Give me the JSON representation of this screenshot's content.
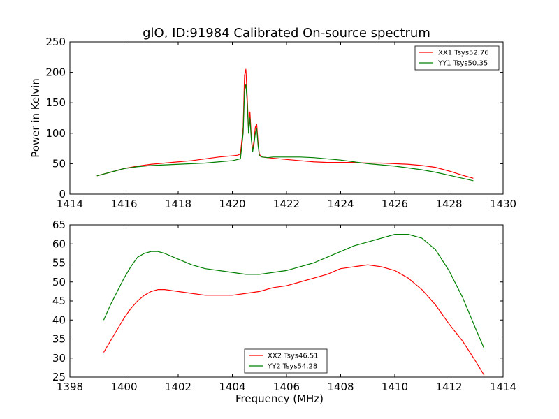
{
  "figure": {
    "title": "glO, ID:91984 Calibrated On-source spectrum"
  },
  "chart_data": [
    {
      "type": "line",
      "title": "glO, ID:91984 Calibrated On-source spectrum",
      "xlabel": "",
      "ylabel": "Power in Kelvin",
      "xlim": [
        1414,
        1430
      ],
      "ylim": [
        0,
        250
      ],
      "xticks": [
        1414,
        1416,
        1418,
        1420,
        1422,
        1424,
        1426,
        1428,
        1430
      ],
      "yticks": [
        0,
        50,
        100,
        150,
        200,
        250
      ],
      "legend_position": "upper-right",
      "grid": false,
      "series": [
        {
          "name": "XX1 Tsys52.76",
          "color": "#ff0000",
          "x": [
            1415.0,
            1415.5,
            1416.0,
            1416.5,
            1417.0,
            1417.5,
            1418.0,
            1418.5,
            1419.0,
            1419.5,
            1420.0,
            1420.2,
            1420.3,
            1420.4,
            1420.45,
            1420.5,
            1420.55,
            1420.6,
            1420.65,
            1420.7,
            1420.75,
            1420.8,
            1420.85,
            1420.9,
            1420.95,
            1421.0,
            1421.1,
            1421.3,
            1421.5,
            1422.0,
            1422.5,
            1423.0,
            1423.5,
            1424.0,
            1424.5,
            1425.0,
            1425.5,
            1426.0,
            1426.5,
            1427.0,
            1427.5,
            1428.0,
            1428.5,
            1428.9
          ],
          "y": [
            30,
            36,
            42,
            46,
            49,
            51,
            53,
            55,
            58,
            61,
            63,
            64,
            66,
            110,
            195,
            205,
            160,
            105,
            135,
            95,
            72,
            88,
            110,
            115,
            85,
            65,
            61,
            60,
            59,
            57,
            55,
            53,
            52,
            52,
            52,
            51,
            51,
            50,
            49,
            47,
            44,
            38,
            31,
            26
          ]
        },
        {
          "name": "YY1 Tsys50.35",
          "color": "#008000",
          "x": [
            1415.0,
            1415.5,
            1416.0,
            1416.5,
            1417.0,
            1417.5,
            1418.0,
            1418.5,
            1419.0,
            1419.5,
            1420.0,
            1420.2,
            1420.3,
            1420.4,
            1420.45,
            1420.5,
            1420.55,
            1420.6,
            1420.65,
            1420.7,
            1420.75,
            1420.8,
            1420.85,
            1420.9,
            1420.95,
            1421.0,
            1421.1,
            1421.3,
            1421.5,
            1422.0,
            1422.5,
            1423.0,
            1423.5,
            1424.0,
            1424.5,
            1425.0,
            1425.5,
            1426.0,
            1426.5,
            1427.0,
            1427.5,
            1428.0,
            1428.5,
            1428.9
          ],
          "y": [
            30,
            36,
            42,
            45,
            47,
            48,
            49,
            50,
            51,
            53,
            55,
            57,
            58,
            100,
            170,
            180,
            150,
            100,
            125,
            90,
            70,
            82,
            100,
            108,
            80,
            63,
            61,
            60,
            61,
            61,
            61,
            60,
            58,
            56,
            53,
            50,
            48,
            46,
            43,
            40,
            36,
            31,
            26,
            22
          ]
        }
      ]
    },
    {
      "type": "line",
      "title": "",
      "xlabel": "Frequency (MHz)",
      "ylabel": "",
      "xlim": [
        1398,
        1414
      ],
      "ylim": [
        25,
        65
      ],
      "xticks": [
        1398,
        1400,
        1402,
        1404,
        1406,
        1408,
        1410,
        1412,
        1414
      ],
      "yticks": [
        25,
        30,
        35,
        40,
        45,
        50,
        55,
        60,
        65
      ],
      "legend_position": "lower-center",
      "grid": false,
      "series": [
        {
          "name": "XX2 Tsys46.51",
          "color": "#ff0000",
          "x": [
            1399.25,
            1399.5,
            1399.75,
            1400.0,
            1400.25,
            1400.5,
            1400.75,
            1401.0,
            1401.25,
            1401.5,
            1402.0,
            1402.5,
            1403.0,
            1403.5,
            1404.0,
            1404.5,
            1405.0,
            1405.5,
            1406.0,
            1406.5,
            1407.0,
            1407.5,
            1408.0,
            1408.5,
            1409.0,
            1409.5,
            1410.0,
            1410.5,
            1411.0,
            1411.5,
            1412.0,
            1412.5,
            1413.0,
            1413.3
          ],
          "y": [
            31.5,
            34.5,
            37.5,
            40.5,
            43.0,
            45.0,
            46.5,
            47.5,
            48.0,
            48.0,
            47.5,
            47.0,
            46.5,
            46.5,
            46.5,
            47.0,
            47.5,
            48.5,
            49.0,
            50.0,
            51.0,
            52.0,
            53.5,
            54.0,
            54.5,
            54.0,
            53.0,
            51.0,
            48.0,
            44.0,
            39.0,
            34.5,
            29.0,
            25.5
          ]
        },
        {
          "name": "YY2 Tsys54.28",
          "color": "#008000",
          "x": [
            1399.25,
            1399.5,
            1399.75,
            1400.0,
            1400.25,
            1400.5,
            1400.75,
            1401.0,
            1401.25,
            1401.5,
            1402.0,
            1402.5,
            1403.0,
            1403.5,
            1404.0,
            1404.5,
            1405.0,
            1405.5,
            1406.0,
            1406.5,
            1407.0,
            1407.5,
            1408.0,
            1408.5,
            1409.0,
            1409.5,
            1410.0,
            1410.5,
            1411.0,
            1411.5,
            1412.0,
            1412.5,
            1413.0,
            1413.3
          ],
          "y": [
            40.0,
            44.0,
            47.5,
            51.0,
            54.0,
            56.5,
            57.5,
            58.0,
            58.0,
            57.5,
            56.0,
            54.5,
            53.5,
            53.0,
            52.5,
            52.0,
            52.0,
            52.5,
            53.0,
            54.0,
            55.0,
            56.5,
            58.0,
            59.5,
            60.5,
            61.5,
            62.5,
            62.5,
            61.5,
            58.5,
            53.0,
            46.0,
            37.5,
            32.5
          ]
        }
      ]
    }
  ]
}
